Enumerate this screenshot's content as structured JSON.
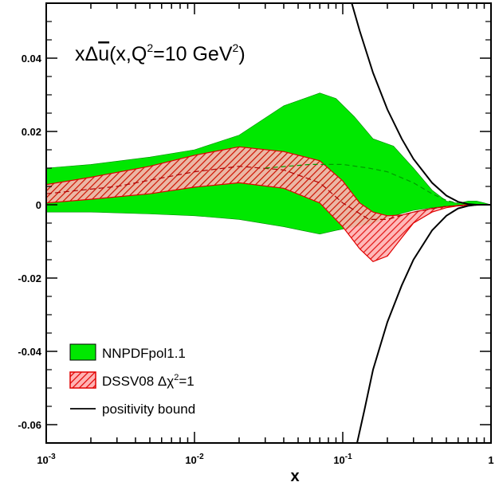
{
  "chart_data": {
    "type": "area",
    "title_parts": {
      "lead": "xΔ",
      "ubar": "u",
      "mid": "(x,Q",
      "sup1": "2",
      "after": "=10 GeV",
      "sup2": "2",
      "close": ")"
    },
    "xlabel": "x",
    "ylabel": "",
    "xscale": "log",
    "xlim": [
      0.001,
      1
    ],
    "ylim": [
      -0.065,
      0.055
    ],
    "x_ticks": [
      {
        "value": 0.001,
        "base": "10",
        "exp": "-3"
      },
      {
        "value": 0.01,
        "base": "10",
        "exp": "-2"
      },
      {
        "value": 0.1,
        "base": "10",
        "exp": "-1"
      },
      {
        "value": 1,
        "base": "1",
        "exp": ""
      }
    ],
    "y_ticks": [
      {
        "value": 0.04,
        "label": "0.04"
      },
      {
        "value": 0.02,
        "label": "0.02"
      },
      {
        "value": 0,
        "label": "0"
      },
      {
        "value": -0.02,
        "label": "-0.02"
      },
      {
        "value": -0.04,
        "label": "-0.04"
      },
      {
        "value": -0.06,
        "label": "-0.06"
      }
    ],
    "legend_position": "bottom-left",
    "series": [
      {
        "name": "NNPDFpol1.1",
        "kind": "band",
        "color": "#00e800",
        "x": [
          0.001,
          0.002,
          0.005,
          0.01,
          0.02,
          0.04,
          0.07,
          0.09,
          0.12,
          0.16,
          0.22,
          0.3,
          0.4,
          0.5,
          0.6,
          0.7,
          0.8,
          0.9,
          1.0
        ],
        "upper": [
          0.01,
          0.011,
          0.013,
          0.015,
          0.019,
          0.027,
          0.0305,
          0.029,
          0.024,
          0.018,
          0.016,
          0.01,
          0.004,
          0.001,
          0.0004,
          0.001,
          0.001,
          0.0005,
          0.0
        ],
        "lower": [
          -0.002,
          -0.002,
          -0.0025,
          -0.003,
          -0.004,
          -0.006,
          -0.008,
          -0.007,
          -0.006,
          -0.005,
          -0.003,
          -0.0015,
          -0.0008,
          -0.0004,
          -0.0002,
          -0.0002,
          -0.0001,
          -0.0001,
          0.0
        ],
        "central_dashed": {
          "x": [
            0.03,
            0.06,
            0.1,
            0.15,
            0.2,
            0.3,
            0.4,
            0.5,
            0.6
          ],
          "y": [
            0.01,
            0.011,
            0.011,
            0.01,
            0.009,
            0.006,
            0.003,
            0.0012,
            0.0004
          ]
        }
      },
      {
        "name": "DSSV08 Δχ²=1",
        "legend_parts": {
          "lead": "DSSV08 Δχ",
          "sup": "2",
          "tail": "=1"
        },
        "kind": "hatched_band",
        "color": "#e00000",
        "fill": "#ff9a9a",
        "x": [
          0.001,
          0.002,
          0.005,
          0.01,
          0.02,
          0.04,
          0.07,
          0.1,
          0.13,
          0.16,
          0.2,
          0.25,
          0.3,
          0.4,
          0.5,
          0.6,
          0.7,
          0.8,
          1.0
        ],
        "upper": [
          0.0055,
          0.0075,
          0.0105,
          0.0135,
          0.0158,
          0.0145,
          0.012,
          0.0065,
          0.0005,
          -0.002,
          -0.003,
          -0.0028,
          -0.002,
          -0.001,
          -0.0005,
          -0.0002,
          0.0,
          0.0,
          0.0
        ],
        "lower": [
          0.0005,
          0.0015,
          0.003,
          0.0048,
          0.006,
          0.0045,
          0.0005,
          -0.006,
          -0.012,
          -0.0155,
          -0.014,
          -0.009,
          -0.005,
          -0.002,
          -0.0008,
          -0.0003,
          -0.0001,
          0.0,
          0.0
        ],
        "central_dashed": {
          "x": [
            0.001,
            0.003,
            0.01,
            0.02,
            0.04,
            0.07,
            0.1,
            0.15,
            0.2,
            0.3,
            0.5,
            1.0
          ],
          "y": [
            0.003,
            0.005,
            0.009,
            0.0105,
            0.0095,
            0.006,
            0.0005,
            -0.004,
            -0.004,
            -0.002,
            -0.0004,
            0.0
          ]
        }
      },
      {
        "name": "positivity bound",
        "kind": "line",
        "color": "#000000",
        "upper": {
          "x": [
            0.115,
            0.13,
            0.16,
            0.2,
            0.25,
            0.3,
            0.4,
            0.5,
            0.6,
            0.7,
            0.8,
            0.9,
            1.0
          ],
          "y": [
            0.055,
            0.0475,
            0.036,
            0.026,
            0.018,
            0.0125,
            0.006,
            0.0025,
            0.0008,
            0.0002,
            0.0,
            0.0,
            0.0
          ]
        },
        "lower": {
          "x": [
            0.125,
            0.14,
            0.16,
            0.2,
            0.25,
            0.3,
            0.4,
            0.5,
            0.6,
            0.7,
            0.8,
            0.9,
            1.0
          ],
          "y": [
            -0.065,
            -0.056,
            -0.045,
            -0.032,
            -0.022,
            -0.015,
            -0.007,
            -0.003,
            -0.001,
            -0.0003,
            0.0,
            0.0,
            0.0
          ]
        }
      }
    ]
  }
}
